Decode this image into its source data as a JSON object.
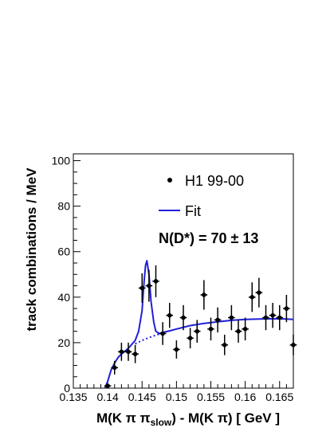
{
  "chart_data": {
    "type": "scatter",
    "xlabel": "M(K π π_slow) - M(K π) [ GeV ]",
    "xlabel_parts": {
      "pre": "M(K ",
      "pi1": "π",
      "mid": " π",
      "sub": "slow",
      "post": ") - M(K π) [ GeV ]"
    },
    "ylabel": "track combinations / MeV",
    "xlim": [
      0.135,
      0.167
    ],
    "ylim": [
      0,
      103
    ],
    "x_ticks": [
      0.135,
      0.14,
      0.145,
      0.15,
      0.155,
      0.16,
      0.165
    ],
    "x_tick_labels": [
      "0.135",
      "0.14",
      "0.145",
      "0.15",
      "0.155",
      "0.16",
      "0.165"
    ],
    "y_ticks": [
      0,
      20,
      40,
      60,
      80,
      100
    ],
    "y_tick_labels": [
      "0",
      "20",
      "40",
      "60",
      "80",
      "100"
    ],
    "legend": [
      {
        "label": "H1 99-00",
        "marker": "point"
      },
      {
        "label": "Fit",
        "marker": "line"
      }
    ],
    "annotation": "N(D*) = 70 ± 13",
    "colors": {
      "data": "#000000",
      "fit": "#1f1fd8"
    },
    "series": [
      {
        "name": "H1 99-00",
        "type": "points",
        "x_error": 0.0005,
        "points": [
          {
            "x": 0.14,
            "y": 1,
            "err": 1
          },
          {
            "x": 0.141,
            "y": 9,
            "err": 3
          },
          {
            "x": 0.142,
            "y": 16,
            "err": 4
          },
          {
            "x": 0.143,
            "y": 16,
            "err": 4
          },
          {
            "x": 0.144,
            "y": 15,
            "err": 4
          },
          {
            "x": 0.145,
            "y": 44,
            "err": 6.5
          },
          {
            "x": 0.146,
            "y": 45,
            "err": 7
          },
          {
            "x": 0.147,
            "y": 47,
            "err": 7
          },
          {
            "x": 0.148,
            "y": 24,
            "err": 5
          },
          {
            "x": 0.149,
            "y": 32,
            "err": 5.5
          },
          {
            "x": 0.15,
            "y": 17,
            "err": 4
          },
          {
            "x": 0.151,
            "y": 31,
            "err": 5.5
          },
          {
            "x": 0.152,
            "y": 22,
            "err": 4.5
          },
          {
            "x": 0.153,
            "y": 25,
            "err": 5
          },
          {
            "x": 0.154,
            "y": 41,
            "err": 6.5
          },
          {
            "x": 0.155,
            "y": 26,
            "err": 5
          },
          {
            "x": 0.156,
            "y": 30,
            "err": 5.5
          },
          {
            "x": 0.157,
            "y": 19,
            "err": 4.5
          },
          {
            "x": 0.158,
            "y": 31,
            "err": 5.5
          },
          {
            "x": 0.159,
            "y": 25,
            "err": 5
          },
          {
            "x": 0.16,
            "y": 26,
            "err": 5
          },
          {
            "x": 0.161,
            "y": 40,
            "err": 6.5
          },
          {
            "x": 0.162,
            "y": 42,
            "err": 6.5
          },
          {
            "x": 0.163,
            "y": 31,
            "err": 5.5
          },
          {
            "x": 0.164,
            "y": 32,
            "err": 5.5
          },
          {
            "x": 0.165,
            "y": 31,
            "err": 5.5
          },
          {
            "x": 0.166,
            "y": 35,
            "err": 6
          },
          {
            "x": 0.167,
            "y": 19,
            "err": 4.5
          }
        ]
      },
      {
        "name": "Fit",
        "type": "line",
        "points": [
          [
            0.1396,
            0
          ],
          [
            0.14,
            3
          ],
          [
            0.1405,
            8
          ],
          [
            0.141,
            11
          ],
          [
            0.1415,
            13.5
          ],
          [
            0.142,
            15
          ],
          [
            0.143,
            17.5
          ],
          [
            0.144,
            21
          ],
          [
            0.1445,
            25
          ],
          [
            0.145,
            34
          ],
          [
            0.1453,
            47
          ],
          [
            0.1455,
            54
          ],
          [
            0.1457,
            56
          ],
          [
            0.146,
            50
          ],
          [
            0.1463,
            38
          ],
          [
            0.1467,
            29
          ],
          [
            0.147,
            25
          ],
          [
            0.1475,
            24
          ],
          [
            0.148,
            24.5
          ],
          [
            0.149,
            25.2
          ],
          [
            0.15,
            26
          ],
          [
            0.152,
            27.5
          ],
          [
            0.154,
            28.5
          ],
          [
            0.156,
            29.2
          ],
          [
            0.158,
            29.8
          ],
          [
            0.16,
            30.2
          ],
          [
            0.162,
            30.4
          ],
          [
            0.164,
            30.5
          ],
          [
            0.166,
            30.4
          ],
          [
            0.167,
            30.2
          ]
        ]
      },
      {
        "name": "Fit (background)",
        "type": "dotted",
        "points": [
          [
            0.144,
            19.5
          ],
          [
            0.145,
            21
          ],
          [
            0.146,
            22.2
          ],
          [
            0.147,
            23.3
          ],
          [
            0.148,
            24.3
          ]
        ]
      }
    ]
  }
}
